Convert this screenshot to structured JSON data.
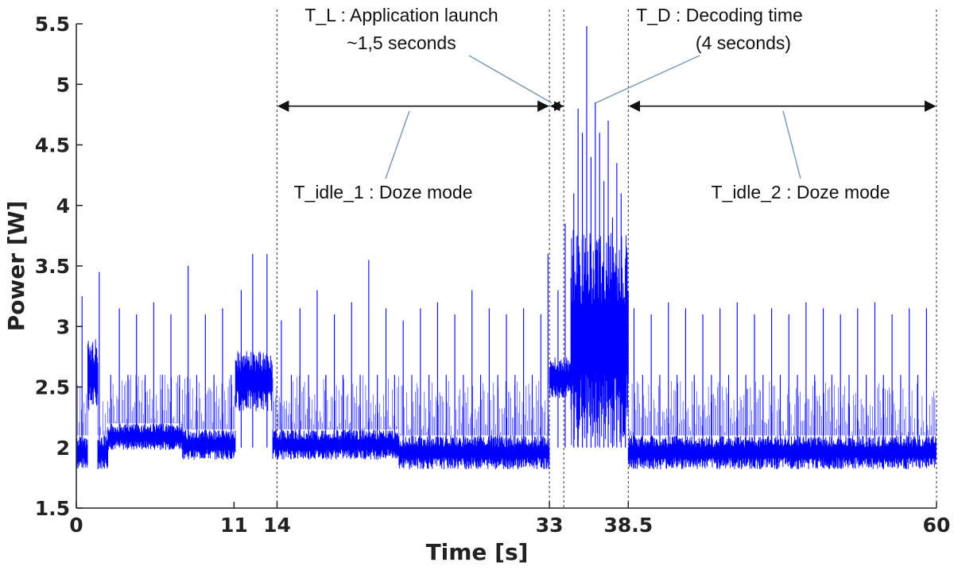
{
  "chart_data": {
    "type": "line",
    "title": "",
    "xlabel": "Time [s]",
    "ylabel": "Power [W]",
    "xlim": [
      0,
      60
    ],
    "ylim": [
      1.5,
      5.5
    ],
    "x_ticks": [
      0,
      11,
      14,
      33,
      38.5,
      60
    ],
    "x_tick_labels": [
      "0",
      "11",
      "14",
      "33",
      "38.5",
      "60"
    ],
    "y_ticks": [
      1.5,
      2,
      2.5,
      3,
      3.5,
      4,
      4.5,
      5,
      5.5
    ],
    "y_tick_labels": [
      "1.5",
      "2",
      "2.5",
      "3",
      "3.5",
      "4",
      "4.5",
      "5",
      "5.5"
    ],
    "grid": false,
    "series": [
      {
        "color": "#0000ff",
        "segments": [
          {
            "x": [
              0,
              0.8
            ],
            "base_low": 1.82,
            "base_high": 2.1,
            "note": ""
          },
          {
            "x": [
              0.8,
              1.5
            ],
            "base_low": 2.3,
            "base_high": 2.9
          },
          {
            "x": [
              1.5,
              2.2
            ],
            "base_low": 1.82,
            "base_high": 2.1
          },
          {
            "x": [
              2.2,
              7.4
            ],
            "base_low": 1.98,
            "base_high": 2.2
          },
          {
            "x": [
              7.4,
              11.1
            ],
            "base_low": 1.9,
            "base_high": 2.15
          },
          {
            "x": [
              11.1,
              13.7
            ],
            "base_low": 2.3,
            "base_high": 2.8
          },
          {
            "x": [
              13.7,
              22.5
            ],
            "base_low": 1.9,
            "base_high": 2.15
          },
          {
            "x": [
              22.5,
              33.0
            ],
            "base_low": 1.82,
            "base_high": 2.1
          },
          {
            "x": [
              33.0,
              34.5
            ],
            "base_low": 2.4,
            "base_high": 2.75
          },
          {
            "x": [
              34.5,
              38.5
            ],
            "base_low": 2.0,
            "base_high": 3.8
          },
          {
            "x": [
              38.5,
              60
            ],
            "base_low": 1.82,
            "base_high": 2.1
          }
        ],
        "spikes": [
          {
            "x": 0.4,
            "y": 3.25
          },
          {
            "x": 1.6,
            "y": 3.45
          },
          {
            "x": 2.4,
            "y": 2.6
          },
          {
            "x": 3.0,
            "y": 3.15
          },
          {
            "x": 3.6,
            "y": 2.6
          },
          {
            "x": 4.2,
            "y": 3.1
          },
          {
            "x": 4.8,
            "y": 2.6
          },
          {
            "x": 5.4,
            "y": 3.2
          },
          {
            "x": 6.0,
            "y": 2.6
          },
          {
            "x": 6.6,
            "y": 3.1
          },
          {
            "x": 7.2,
            "y": 2.6
          },
          {
            "x": 7.8,
            "y": 3.5
          },
          {
            "x": 8.4,
            "y": 2.6
          },
          {
            "x": 9.0,
            "y": 3.1
          },
          {
            "x": 9.6,
            "y": 2.6
          },
          {
            "x": 10.2,
            "y": 3.15
          },
          {
            "x": 10.8,
            "y": 2.6
          },
          {
            "x": 11.5,
            "y": 3.3
          },
          {
            "x": 12.3,
            "y": 3.6
          },
          {
            "x": 13.3,
            "y": 3.6
          },
          {
            "x": 14.3,
            "y": 3.05
          },
          {
            "x": 15.0,
            "y": 2.6
          },
          {
            "x": 15.6,
            "y": 3.15
          },
          {
            "x": 16.2,
            "y": 2.6
          },
          {
            "x": 16.8,
            "y": 3.3
          },
          {
            "x": 17.4,
            "y": 2.6
          },
          {
            "x": 18.0,
            "y": 3.1
          },
          {
            "x": 18.6,
            "y": 2.6
          },
          {
            "x": 19.2,
            "y": 3.2
          },
          {
            "x": 19.8,
            "y": 2.6
          },
          {
            "x": 20.4,
            "y": 3.55
          },
          {
            "x": 21.0,
            "y": 2.6
          },
          {
            "x": 21.6,
            "y": 3.15
          },
          {
            "x": 22.2,
            "y": 2.6
          },
          {
            "x": 22.8,
            "y": 3.05
          },
          {
            "x": 23.4,
            "y": 2.6
          },
          {
            "x": 24.0,
            "y": 3.15
          },
          {
            "x": 24.6,
            "y": 2.6
          },
          {
            "x": 25.2,
            "y": 3.2
          },
          {
            "x": 25.8,
            "y": 2.6
          },
          {
            "x": 26.4,
            "y": 3.1
          },
          {
            "x": 27.0,
            "y": 2.6
          },
          {
            "x": 27.6,
            "y": 3.3
          },
          {
            "x": 28.2,
            "y": 2.6
          },
          {
            "x": 28.8,
            "y": 3.15
          },
          {
            "x": 29.4,
            "y": 2.6
          },
          {
            "x": 30.0,
            "y": 3.1
          },
          {
            "x": 30.6,
            "y": 2.6
          },
          {
            "x": 31.2,
            "y": 3.15
          },
          {
            "x": 31.8,
            "y": 2.6
          },
          {
            "x": 32.4,
            "y": 3.1
          },
          {
            "x": 32.9,
            "y": 3.6
          },
          {
            "x": 33.6,
            "y": 3.3
          },
          {
            "x": 34.1,
            "y": 3.85
          },
          {
            "x": 34.7,
            "y": 4.1
          },
          {
            "x": 35.0,
            "y": 4.8
          },
          {
            "x": 35.3,
            "y": 4.6
          },
          {
            "x": 35.6,
            "y": 5.48
          },
          {
            "x": 35.9,
            "y": 4.4
          },
          {
            "x": 36.2,
            "y": 4.85
          },
          {
            "x": 36.5,
            "y": 4.6
          },
          {
            "x": 36.8,
            "y": 4.2
          },
          {
            "x": 37.1,
            "y": 4.7
          },
          {
            "x": 37.4,
            "y": 3.9
          },
          {
            "x": 37.7,
            "y": 4.35
          },
          {
            "x": 38.0,
            "y": 4.1
          },
          {
            "x": 38.3,
            "y": 3.5
          },
          {
            "x": 38.9,
            "y": 3.15
          },
          {
            "x": 39.5,
            "y": 2.6
          },
          {
            "x": 40.1,
            "y": 3.1
          },
          {
            "x": 40.7,
            "y": 2.6
          },
          {
            "x": 41.3,
            "y": 3.2
          },
          {
            "x": 41.9,
            "y": 2.6
          },
          {
            "x": 42.5,
            "y": 3.15
          },
          {
            "x": 43.1,
            "y": 2.6
          },
          {
            "x": 43.7,
            "y": 3.1
          },
          {
            "x": 44.3,
            "y": 2.6
          },
          {
            "x": 44.9,
            "y": 3.15
          },
          {
            "x": 45.5,
            "y": 2.6
          },
          {
            "x": 46.1,
            "y": 3.2
          },
          {
            "x": 46.7,
            "y": 2.6
          },
          {
            "x": 47.3,
            "y": 3.1
          },
          {
            "x": 47.9,
            "y": 2.6
          },
          {
            "x": 48.5,
            "y": 3.15
          },
          {
            "x": 49.1,
            "y": 2.6
          },
          {
            "x": 49.7,
            "y": 3.1
          },
          {
            "x": 50.3,
            "y": 2.6
          },
          {
            "x": 50.9,
            "y": 3.2
          },
          {
            "x": 51.5,
            "y": 2.6
          },
          {
            "x": 52.1,
            "y": 3.15
          },
          {
            "x": 52.7,
            "y": 2.6
          },
          {
            "x": 53.3,
            "y": 3.1
          },
          {
            "x": 53.9,
            "y": 2.6
          },
          {
            "x": 54.5,
            "y": 3.15
          },
          {
            "x": 55.1,
            "y": 2.6
          },
          {
            "x": 55.7,
            "y": 3.2
          },
          {
            "x": 56.3,
            "y": 2.6
          },
          {
            "x": 56.9,
            "y": 3.1
          },
          {
            "x": 57.5,
            "y": 2.6
          },
          {
            "x": 58.1,
            "y": 3.15
          },
          {
            "x": 58.7,
            "y": 2.6
          },
          {
            "x": 59.3,
            "y": 3.15
          }
        ]
      }
    ],
    "dashed_markers": [
      14,
      33,
      34,
      38.5,
      60
    ],
    "annotations": [
      {
        "name": "t-l",
        "lines": [
          "T_L : Application launch",
          "~1,5 seconds"
        ],
        "target_x": 33.6,
        "target_y": 4.82
      },
      {
        "name": "t-d",
        "lines": [
          "T_D : Decoding time",
          "(4 seconds)"
        ],
        "target_x": 36.0,
        "target_y": 4.82
      },
      {
        "name": "t-idle-1",
        "lines": [
          "T_idle_1 : Doze mode"
        ],
        "range": [
          14,
          33
        ]
      },
      {
        "name": "t-idle-2",
        "lines": [
          "T_idle_2 : Doze mode"
        ],
        "range": [
          38.5,
          60
        ]
      }
    ],
    "arrow_level_y": 4.82
  }
}
